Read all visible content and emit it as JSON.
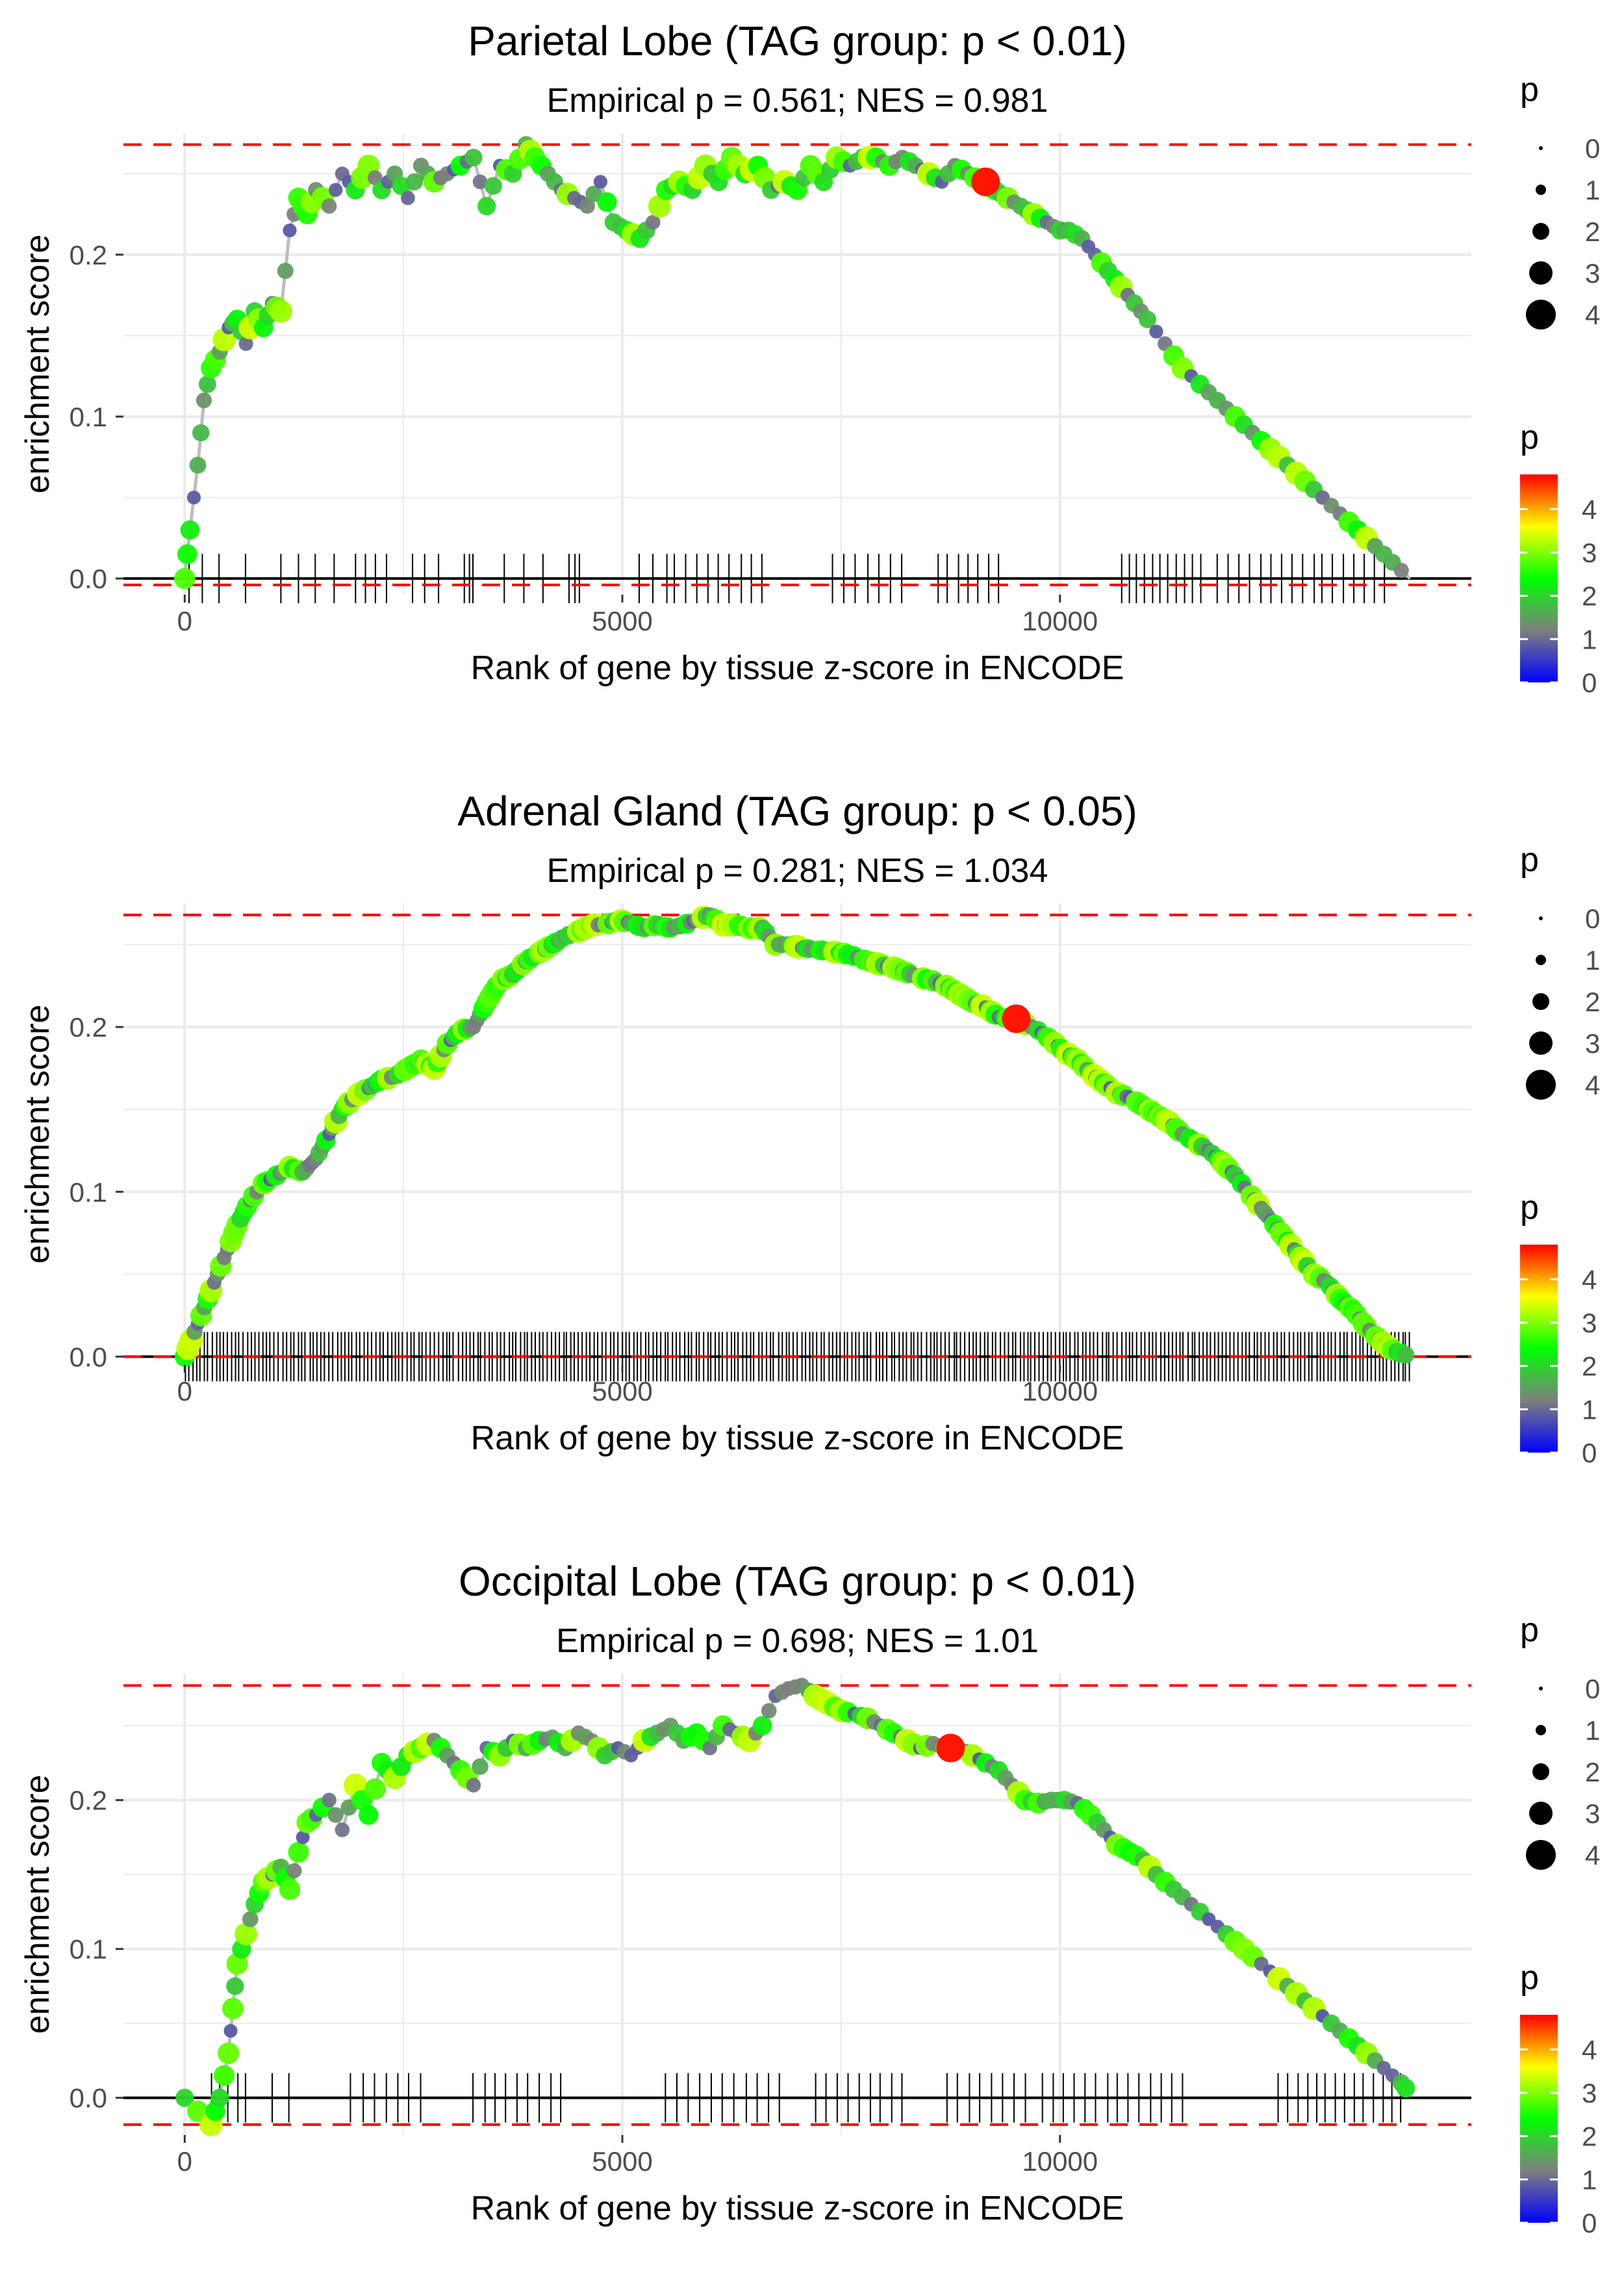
{
  "colors": {
    "grid": "#ebebeb",
    "reference_line": "#ff0000",
    "curve": "#bdbdbd",
    "axis_zero": "#000000",
    "tick_text": "#4d4d4d",
    "text": "#000000",
    "gradient": [
      "#0000ff",
      "#7f7f7f",
      "#00ff00",
      "#ffff00",
      "#ff0000"
    ]
  },
  "chart_data": [
    {
      "type": "line",
      "title": "Parietal Lobe (TAG group: p < 0.01)",
      "subtitle": "Empirical p = 0.561; NES = 0.981",
      "xlabel": "Rank of gene by tissue z-score in ENCODE",
      "ylabel": "enrichment score",
      "xlim": [
        -700,
        14700
      ],
      "ylim": [
        -0.01,
        0.275
      ],
      "xticks": [
        0,
        5000,
        10000
      ],
      "xtick_labels": [
        "0",
        "5000",
        "10000"
      ],
      "yticks": [
        0.0,
        0.1,
        0.2
      ],
      "ytick_labels": [
        "0.0",
        "0.1",
        "0.2"
      ],
      "max_es": 0.268,
      "min_es": -0.004,
      "curve": {
        "x": [
          0,
          60,
          150,
          220,
          300,
          400,
          500,
          600,
          700,
          800,
          900,
          1000,
          1100,
          1200,
          1300,
          1400,
          1500,
          1650,
          1800,
          1950,
          2100,
          2250,
          2400,
          2550,
          2700,
          2850,
          3000,
          3150,
          3300,
          3450,
          3600,
          3750,
          3900,
          4000,
          4150,
          4300,
          4450,
          4600,
          4750,
          4900,
          5050,
          5200,
          5350,
          5500,
          5650,
          5800,
          5950,
          6100,
          6250,
          6400,
          6550,
          6700,
          6850,
          7000,
          7150,
          7300,
          7450,
          7600,
          7750,
          7900,
          8050,
          8200,
          8350,
          8500,
          8650,
          8800,
          8950,
          9100,
          9250,
          9400,
          9550,
          9700,
          9850,
          10000,
          10100,
          10250,
          10400,
          10550,
          10700,
          10850,
          11000,
          11200,
          11400,
          11600,
          11800,
          12000,
          12200,
          12400,
          12600,
          12800,
          13000,
          13200,
          13400,
          13600,
          13800,
          14000
        ],
        "y": [
          0.0,
          0.03,
          0.07,
          0.11,
          0.13,
          0.14,
          0.155,
          0.16,
          0.145,
          0.165,
          0.155,
          0.17,
          0.165,
          0.215,
          0.235,
          0.225,
          0.24,
          0.23,
          0.25,
          0.24,
          0.255,
          0.24,
          0.25,
          0.235,
          0.255,
          0.245,
          0.25,
          0.255,
          0.26,
          0.23,
          0.255,
          0.25,
          0.268,
          0.26,
          0.25,
          0.24,
          0.235,
          0.23,
          0.245,
          0.22,
          0.215,
          0.21,
          0.22,
          0.24,
          0.245,
          0.24,
          0.255,
          0.245,
          0.26,
          0.25,
          0.255,
          0.24,
          0.245,
          0.24,
          0.255,
          0.245,
          0.26,
          0.255,
          0.26,
          0.26,
          0.255,
          0.26,
          0.255,
          0.25,
          0.245,
          0.255,
          0.25,
          0.245,
          0.24,
          0.235,
          0.23,
          0.225,
          0.22,
          0.215,
          0.215,
          0.21,
          0.2,
          0.19,
          0.18,
          0.17,
          0.16,
          0.145,
          0.13,
          0.12,
          0.11,
          0.1,
          0.09,
          0.08,
          0.07,
          0.06,
          0.05,
          0.04,
          0.03,
          0.02,
          0.01,
          0.0
        ]
      },
      "highlight_point": {
        "x": 9150,
        "y": 0.245,
        "p": 4.7
      },
      "gene_marks": {
        "segments": [
          [
            50,
            200,
            0.5
          ],
          [
            400,
            700,
            0.25
          ],
          [
            1100,
            1700,
            0.25
          ],
          [
            1950,
            2300,
            0.4
          ],
          [
            2600,
            2900,
            0.35
          ],
          [
            3200,
            3300,
            1
          ],
          [
            3650,
            4100,
            0.3
          ],
          [
            4400,
            4500,
            1
          ],
          [
            5200,
            5500,
            0.35
          ],
          [
            5600,
            6600,
            0.35
          ],
          [
            7400,
            8200,
            0.35
          ],
          [
            8600,
            9300,
            0.4
          ],
          [
            10700,
            11600,
            0.5
          ],
          [
            11800,
            12900,
            0.35
          ],
          [
            13000,
            13700,
            0.4
          ]
        ]
      },
      "legend": {
        "size_title": "p",
        "size_labels": [
          "0",
          "1",
          "2",
          "3",
          "4"
        ],
        "color_title": "p",
        "color_labels": [
          "4",
          "3",
          "2",
          "1",
          "0"
        ]
      }
    },
    {
      "type": "line",
      "title": "Adrenal Gland (TAG group: p < 0.05)",
      "subtitle": "Empirical p = 0.281; NES = 1.034",
      "xlabel": "Rank of gene by tissue z-score in ENCODE",
      "ylabel": "enrichment score",
      "xlim": [
        -700,
        14700
      ],
      "ylim": [
        -0.005,
        0.275
      ],
      "xticks": [
        0,
        5000,
        10000
      ],
      "xtick_labels": [
        "0",
        "5000",
        "10000"
      ],
      "yticks": [
        0.0,
        0.1,
        0.2
      ],
      "ytick_labels": [
        "0.0",
        "0.1",
        "0.2"
      ],
      "max_es": 0.268,
      "min_es": 0.0,
      "curve": {
        "x": [
          0,
          150,
          300,
          450,
          600,
          750,
          900,
          1050,
          1200,
          1350,
          1500,
          1650,
          1800,
          1950,
          2100,
          2250,
          2400,
          2550,
          2700,
          2850,
          3000,
          3150,
          3300,
          3450,
          3600,
          3750,
          3900,
          4050,
          4200,
          4350,
          4500,
          4650,
          4800,
          4950,
          5100,
          5250,
          5400,
          5550,
          5700,
          5850,
          6000,
          6150,
          6300,
          6450,
          6600,
          6750,
          6900,
          7050,
          7200,
          7350,
          7500,
          7650,
          7800,
          7950,
          8100,
          8250,
          8400,
          8550,
          8700,
          8850,
          9000,
          9150,
          9300,
          9450,
          9600,
          9750,
          9900,
          10050,
          10200,
          10350,
          10500,
          10650,
          10800,
          10950,
          11100,
          11250,
          11400,
          11550,
          11700,
          11850,
          12000,
          12150,
          12300,
          12450,
          12600,
          12750,
          12900,
          13050,
          13200,
          13350,
          13500,
          13650,
          13800,
          14000
        ],
        "y": [
          0.0,
          0.02,
          0.04,
          0.06,
          0.08,
          0.095,
          0.105,
          0.11,
          0.115,
          0.112,
          0.12,
          0.135,
          0.15,
          0.158,
          0.163,
          0.168,
          0.17,
          0.175,
          0.18,
          0.175,
          0.19,
          0.198,
          0.2,
          0.215,
          0.228,
          0.232,
          0.24,
          0.245,
          0.25,
          0.255,
          0.258,
          0.262,
          0.262,
          0.265,
          0.263,
          0.26,
          0.262,
          0.26,
          0.262,
          0.265,
          0.268,
          0.262,
          0.262,
          0.26,
          0.26,
          0.25,
          0.25,
          0.248,
          0.247,
          0.246,
          0.245,
          0.243,
          0.24,
          0.238,
          0.236,
          0.233,
          0.23,
          0.228,
          0.225,
          0.22,
          0.215,
          0.212,
          0.206,
          0.205,
          0.202,
          0.198,
          0.192,
          0.185,
          0.18,
          0.172,
          0.166,
          0.16,
          0.157,
          0.152,
          0.147,
          0.142,
          0.135,
          0.13,
          0.125,
          0.118,
          0.11,
          0.1,
          0.09,
          0.08,
          0.07,
          0.06,
          0.05,
          0.045,
          0.035,
          0.028,
          0.018,
          0.01,
          0.004,
          0.0
        ]
      },
      "highlight_point": {
        "x": 9500,
        "y": 0.205,
        "p": 4.7
      },
      "gene_marks": {
        "segments": [
          [
            0,
            14000,
            0.9
          ]
        ]
      },
      "legend": {
        "size_title": "p",
        "size_labels": [
          "0",
          "1",
          "2",
          "3",
          "4"
        ],
        "color_title": "p",
        "color_labels": [
          "4",
          "3",
          "2",
          "1",
          "0"
        ]
      }
    },
    {
      "type": "line",
      "title": "Occipital Lobe (TAG group: p < 0.01)",
      "subtitle": "Empirical p = 0.698; NES = 1.01",
      "xlabel": "Rank of gene by tissue z-score in ENCODE",
      "ylabel": "enrichment score",
      "xlim": [
        -700,
        14700
      ],
      "ylim": [
        -0.025,
        0.285
      ],
      "xticks": [
        0,
        5000,
        10000
      ],
      "xtick_labels": [
        "0",
        "5000",
        "10000"
      ],
      "yticks": [
        0.0,
        0.1,
        0.2
      ],
      "ytick_labels": [
        "0.0",
        "0.1",
        "0.2"
      ],
      "max_es": 0.277,
      "min_es": -0.018,
      "curve": {
        "x": [
          0,
          300,
          400,
          500,
          550,
          600,
          700,
          800,
          900,
          1000,
          1100,
          1200,
          1300,
          1400,
          1500,
          1650,
          1800,
          1950,
          2100,
          2250,
          2400,
          2550,
          2700,
          2850,
          3000,
          3150,
          3300,
          3450,
          3600,
          3750,
          3900,
          4050,
          4200,
          4350,
          4500,
          4650,
          4800,
          4950,
          5100,
          5250,
          5400,
          5550,
          5700,
          5850,
          6000,
          6150,
          6300,
          6450,
          6600,
          6750,
          6900,
          7050,
          7200,
          7350,
          7500,
          7650,
          7800,
          7950,
          8100,
          8250,
          8400,
          8550,
          8700,
          8850,
          9000,
          9150,
          9300,
          9450,
          9600,
          9750,
          9900,
          10050,
          10200,
          10350,
          10500,
          10650,
          10800,
          10950,
          11100,
          11300,
          11500,
          11700,
          11900,
          12100,
          12300,
          12500,
          12700,
          12900,
          13100,
          13300,
          13500,
          13700,
          13900,
          14000
        ],
        "y": [
          0.0,
          -0.018,
          0.0,
          0.03,
          0.06,
          0.09,
          0.11,
          0.13,
          0.145,
          0.15,
          0.155,
          0.14,
          0.165,
          0.185,
          0.19,
          0.2,
          0.18,
          0.21,
          0.19,
          0.225,
          0.215,
          0.23,
          0.235,
          0.24,
          0.23,
          0.22,
          0.21,
          0.235,
          0.23,
          0.24,
          0.235,
          0.24,
          0.242,
          0.235,
          0.245,
          0.24,
          0.23,
          0.235,
          0.23,
          0.24,
          0.245,
          0.25,
          0.24,
          0.245,
          0.235,
          0.25,
          0.245,
          0.24,
          0.25,
          0.27,
          0.275,
          0.277,
          0.27,
          0.265,
          0.26,
          0.258,
          0.255,
          0.25,
          0.245,
          0.24,
          0.235,
          0.238,
          0.235,
          0.235,
          0.23,
          0.225,
          0.22,
          0.21,
          0.2,
          0.198,
          0.2,
          0.2,
          0.198,
          0.19,
          0.18,
          0.17,
          0.165,
          0.16,
          0.15,
          0.14,
          0.13,
          0.12,
          0.11,
          0.1,
          0.09,
          0.08,
          0.07,
          0.06,
          0.05,
          0.04,
          0.03,
          0.02,
          0.01,
          0.003
        ]
      },
      "highlight_point": {
        "x": 8750,
        "y": 0.235,
        "p": 4.7
      },
      "gene_marks": {
        "segments": [
          [
            300,
            700,
            0.5
          ],
          [
            1000,
            1200,
            0.3
          ],
          [
            1900,
            2700,
            0.35
          ],
          [
            3300,
            4300,
            0.35
          ],
          [
            5500,
            6800,
            0.35
          ],
          [
            7200,
            8200,
            0.35
          ],
          [
            8700,
            9600,
            0.35
          ],
          [
            9800,
            11400,
            0.35
          ],
          [
            12500,
            13900,
            0.4
          ]
        ]
      },
      "legend": {
        "size_title": "p",
        "size_labels": [
          "0",
          "1",
          "2",
          "3",
          "4"
        ],
        "color_title": "p",
        "color_labels": [
          "4",
          "3",
          "2",
          "1",
          "0"
        ]
      }
    }
  ]
}
